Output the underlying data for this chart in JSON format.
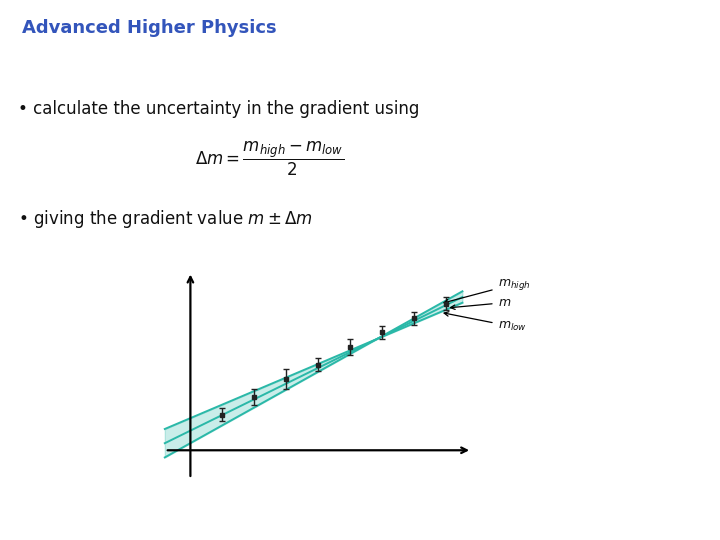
{
  "title": "Advanced Higher Physics",
  "title_color": "#3355bb",
  "title_fontsize": 13,
  "bg_color": "#ffffff",
  "rule_color": "#4477cc",
  "bullet1": "calculate the uncertainty in the gradient using",
  "bullet2": "giving the gradient value ",
  "bullet_fontsize": 12,
  "formula_fontsize": 12,
  "data_x": [
    1,
    2,
    3,
    4,
    5,
    6,
    7,
    8
  ],
  "data_y": [
    1.0,
    1.5,
    2.0,
    2.4,
    2.9,
    3.3,
    3.7,
    4.1
  ],
  "data_yerr": [
    0.18,
    0.22,
    0.28,
    0.18,
    0.22,
    0.18,
    0.18,
    0.18
  ],
  "slope_mid": 0.44,
  "intercept_mid": 0.55,
  "slope_high": 0.5,
  "intercept_high": 0.2,
  "slope_low": 0.38,
  "intercept_low": 0.9,
  "annotation_fontsize": 9,
  "data_color": "#222222",
  "teal_color": "#2ab8a8"
}
